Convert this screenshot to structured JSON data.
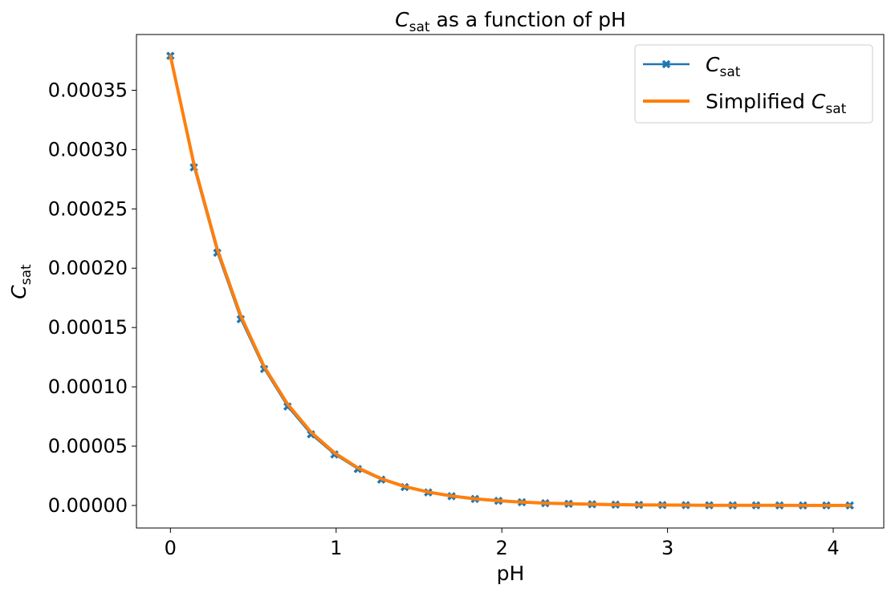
{
  "chart_data": {
    "type": "line",
    "title": {
      "symbol": "C",
      "subscript": "sat",
      "suffix": " as a function of pH"
    },
    "xlabel": "pH",
    "ylabel": {
      "symbol": "C",
      "subscript": "sat"
    },
    "xlim": [
      -0.205,
      4.305
    ],
    "ylim": [
      -1.9e-05,
      0.000397
    ],
    "xticks": [
      0,
      1,
      2,
      3,
      4
    ],
    "xtick_labels": [
      "0",
      "1",
      "2",
      "3",
      "4"
    ],
    "yticks": [
      0,
      5e-05,
      0.0001,
      0.00015,
      0.0002,
      0.00025,
      0.0003,
      0.00035
    ],
    "ytick_labels": [
      "0.00000",
      "0.00005",
      "0.00010",
      "0.00015",
      "0.00020",
      "0.00025",
      "0.00030",
      "0.00035"
    ],
    "grid": false,
    "legend_position": "top-right",
    "x": [
      0,
      0.1414,
      0.2828,
      0.4241,
      0.5655,
      0.7069,
      0.8483,
      0.9897,
      1.131,
      1.2724,
      1.4138,
      1.5552,
      1.6966,
      1.8379,
      1.9793,
      2.1207,
      2.2621,
      2.4034,
      2.5448,
      2.6862,
      2.8276,
      2.969,
      3.1103,
      3.2517,
      3.3931,
      3.5345,
      3.6759,
      3.8172,
      3.9586,
      4.1
    ],
    "series": [
      {
        "name": {
          "symbol": "C",
          "subscript": "sat"
        },
        "color": "#1f77b4",
        "marker": "X",
        "values": [
          0.000379,
          0.000285,
          0.000213,
          0.000157,
          0.000115,
          8.34e-05,
          6e-05,
          4.3e-05,
          3.07e-05,
          2.18e-05,
          1.55e-05,
          1.1e-05,
          7.8e-06,
          5.5e-06,
          3.9e-06,
          2.7e-06,
          1.9e-06,
          1.4e-06,
          1e-06,
          7e-07,
          5e-07,
          3.5e-07,
          2.5e-07,
          1.7e-07,
          1.2e-07,
          9e-08,
          6e-08,
          4e-08,
          3e-08,
          2e-08
        ]
      },
      {
        "name": {
          "prefix": "Simplified ",
          "symbol": "C",
          "subscript": "sat"
        },
        "color": "#ff7f0e",
        "marker": "none",
        "values": [
          0.000379,
          0.000288,
          0.000216,
          0.00016,
          0.000117,
          8.55e-05,
          6.18e-05,
          4.44e-05,
          3.17e-05,
          2.25e-05,
          1.6e-05,
          1.13e-05,
          8e-06,
          5.6e-06,
          4e-06,
          2.8e-06,
          2e-06,
          1.4e-06,
          1e-06,
          7e-07,
          5e-07,
          3.5e-07,
          2.5e-07,
          1.7e-07,
          1.2e-07,
          9e-08,
          6e-08,
          4e-08,
          3e-08,
          2e-08
        ]
      }
    ]
  }
}
